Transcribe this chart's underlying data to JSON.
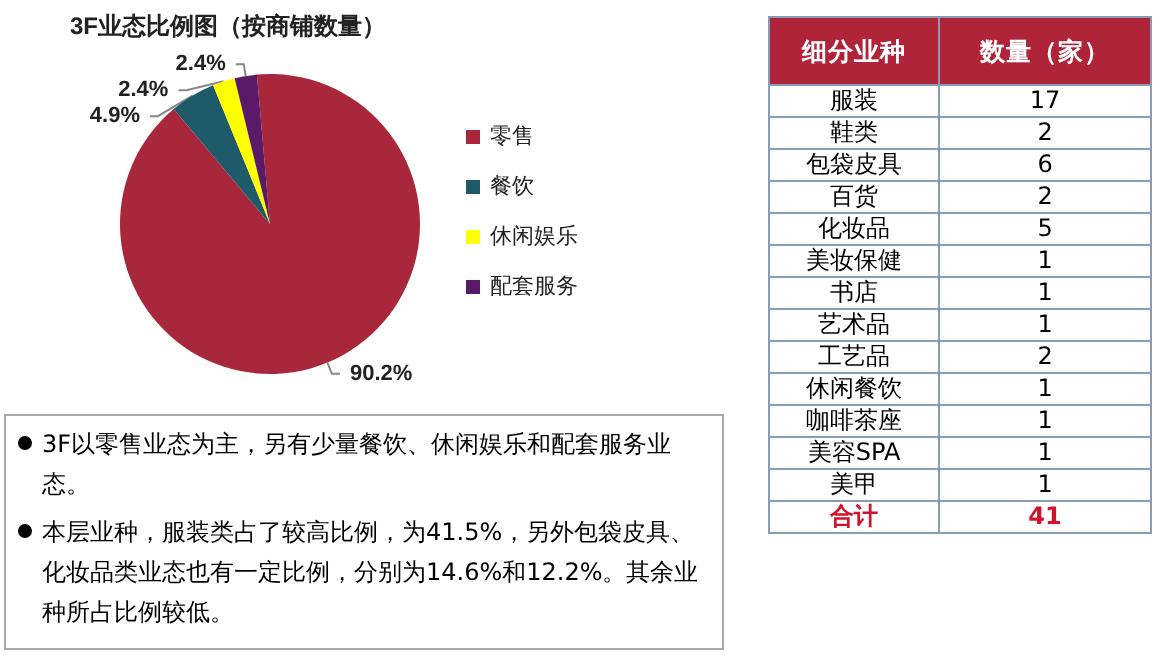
{
  "chart_data": [
    {
      "type": "pie",
      "title": "3F业态比例图（按商铺数量）",
      "categories": [
        "零售",
        "餐饮",
        "休闲娱乐",
        "配套服务"
      ],
      "values": [
        90.2,
        4.9,
        2.4,
        2.4
      ],
      "colors": [
        "#a8273b",
        "#1f5a6b",
        "#ffff00",
        "#5b1a68"
      ],
      "value_labels": [
        "90.2%",
        "4.9%",
        "2.4%",
        "2.4%"
      ],
      "legend": "right"
    },
    {
      "type": "other",
      "xlabel": "细分业种",
      "ylabel": "数量（家）",
      "categories": [
        "服装",
        "鞋类",
        "包袋皮具",
        "百货",
        "化妆品",
        "美妆保健",
        "书店",
        "艺术品",
        "工艺品",
        "休闲餐饮",
        "咖啡茶座",
        "美容SPA",
        "美甲"
      ],
      "values": [
        17,
        2,
        6,
        2,
        5,
        1,
        1,
        1,
        2,
        1,
        1,
        1,
        1
      ],
      "data_labels": true,
      "totals": [
        "41"
      ],
      "annotations": [
        "合计",
        "3F以零售业态为主，另有少量餐饮、休闲娱乐和配套服务业态。",
        "本层业种，服装类占了较高比例，为41.5%，另外包袋皮具、化妆品类业态也有一定比例，分别为14.6%和12.2%。其余业种所占比例较低。"
      ]
    }
  ]
}
